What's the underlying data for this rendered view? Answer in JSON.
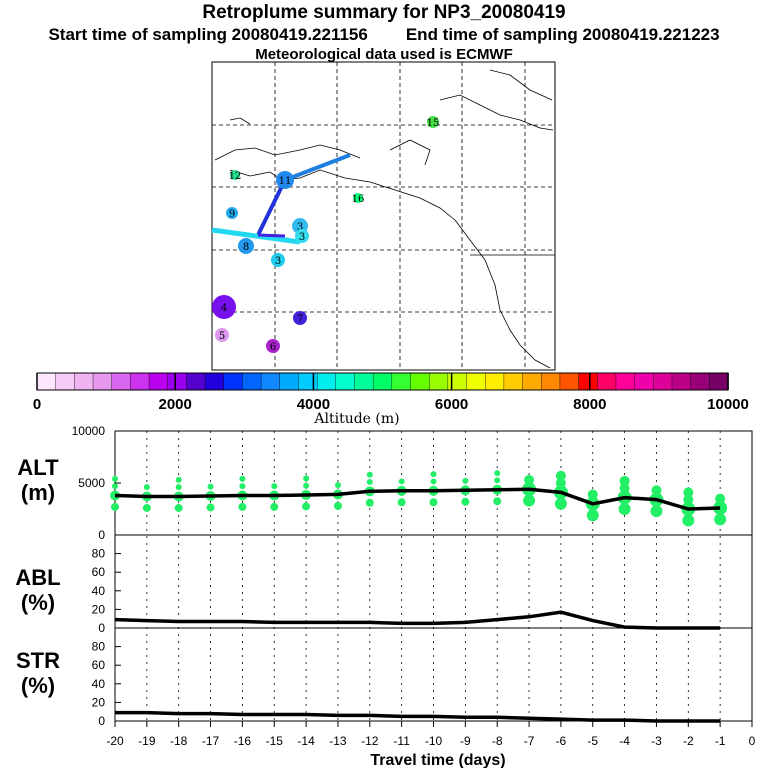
{
  "header": {
    "title": "Retroplume summary for NP3_20080419",
    "start_label": "Start time of sampling 20080419.221156",
    "end_label": "End time of sampling 20080419.221223",
    "met_label": "Meteorological data used is ECMWF"
  },
  "map": {
    "labels": [
      {
        "text": "15",
        "color": "#44dd44"
      },
      {
        "text": "12",
        "color": "#22dd88"
      },
      {
        "text": "11",
        "color": "#2288ee"
      },
      {
        "text": "16",
        "color": "#00ff77"
      },
      {
        "text": "9",
        "color": "#22aaee"
      },
      {
        "text": "4",
        "color": "#7711ee"
      },
      {
        "text": "5",
        "color": "#dd99ee"
      },
      {
        "text": "6",
        "color": "#aa22cc"
      },
      {
        "text": "7",
        "color": "#4422dd"
      },
      {
        "text": "8",
        "color": "#2299ee"
      },
      {
        "text": "3",
        "color": "#33bbee"
      },
      {
        "text": "3",
        "color": "#22ccee"
      },
      {
        "text": "3",
        "color": "#33ddee"
      }
    ]
  },
  "colorbar": {
    "label": "Altitude (m)",
    "ticks": [
      "0",
      "2000",
      "4000",
      "6000",
      "8000",
      "10000"
    ],
    "colors": [
      "#ffe6ff",
      "#f5ccf5",
      "#eeb3f0",
      "#e699ee",
      "#d966ee",
      "#cc33ee",
      "#bb00ee",
      "#9900ee",
      "#5500cc",
      "#2200dd",
      "#0033ff",
      "#0066ff",
      "#1188ff",
      "#00aaff",
      "#00ccff",
      "#00eeee",
      "#00ffcc",
      "#00ff99",
      "#00ff66",
      "#33ff33",
      "#66ff00",
      "#99ff00",
      "#ccff00",
      "#eeff00",
      "#ffee00",
      "#ffcc00",
      "#ffaa00",
      "#ff8800",
      "#ff5500",
      "#ff0000",
      "#ff0066",
      "#ff0099",
      "#ee00aa",
      "#dd0099",
      "#bb0088",
      "#990077",
      "#770066"
    ]
  },
  "chart_data": [
    {
      "type": "line",
      "panel": "ALT",
      "ylabel_line1": "ALT",
      "ylabel_line2": "(m)",
      "xlabel": "Travel time (days)",
      "xlim": [
        -20,
        0
      ],
      "ylim": [
        0,
        10000
      ],
      "yticks": [
        "10000",
        "5000",
        "0"
      ],
      "series": [
        {
          "name": "median altitude",
          "x": [
            -20,
            -19,
            -18,
            -17,
            -16,
            -15,
            -14,
            -13,
            -12,
            -11,
            -10,
            -9,
            -8,
            -7,
            -6,
            -5,
            -4,
            -3,
            -2,
            -1
          ],
          "values": [
            3800,
            3700,
            3700,
            3750,
            3800,
            3800,
            3850,
            3900,
            4200,
            4250,
            4250,
            4300,
            4350,
            4400,
            4100,
            3000,
            3600,
            3400,
            2500,
            2600
          ]
        }
      ]
    },
    {
      "type": "line",
      "panel": "ABL",
      "ylabel_line1": "ABL",
      "ylabel_line2": "(%)",
      "xlim": [
        -20,
        0
      ],
      "ylim": [
        0,
        100
      ],
      "yticks": [
        "80",
        "60",
        "40",
        "20",
        "0"
      ],
      "series": [
        {
          "name": "boundary layer fraction",
          "x": [
            -20,
            -19,
            -18,
            -17,
            -16,
            -15,
            -14,
            -13,
            -12,
            -11,
            -10,
            -9,
            -8,
            -7,
            -6,
            -5,
            -4,
            -3,
            -2,
            -1
          ],
          "values": [
            9,
            8,
            7,
            7,
            7,
            6,
            6,
            6,
            6,
            5,
            5,
            6,
            9,
            12,
            17,
            8,
            1,
            0,
            0,
            0
          ]
        }
      ]
    },
    {
      "type": "line",
      "panel": "STR",
      "ylabel_line1": "STR",
      "ylabel_line2": "(%)",
      "xlim": [
        -20,
        0
      ],
      "ylim": [
        0,
        100
      ],
      "yticks": [
        "80",
        "60",
        "40",
        "20",
        "0"
      ],
      "xticks": [
        "-20",
        "-19",
        "-18",
        "-17",
        "-16",
        "-15",
        "-14",
        "-13",
        "-12",
        "-11",
        "-10",
        "-9",
        "-8",
        "-7",
        "-6",
        "-5",
        "-4",
        "-3",
        "-2",
        "-1",
        "0"
      ],
      "series": [
        {
          "name": "stratosphere fraction",
          "x": [
            -20,
            -19,
            -18,
            -17,
            -16,
            -15,
            -14,
            -13,
            -12,
            -11,
            -10,
            -9,
            -8,
            -7,
            -6,
            -5,
            -4,
            -3,
            -2,
            -1
          ],
          "values": [
            9,
            9,
            8,
            8,
            7,
            7,
            7,
            6,
            6,
            5,
            5,
            4,
            4,
            3,
            2,
            1,
            1,
            0,
            0,
            0
          ]
        }
      ]
    }
  ]
}
